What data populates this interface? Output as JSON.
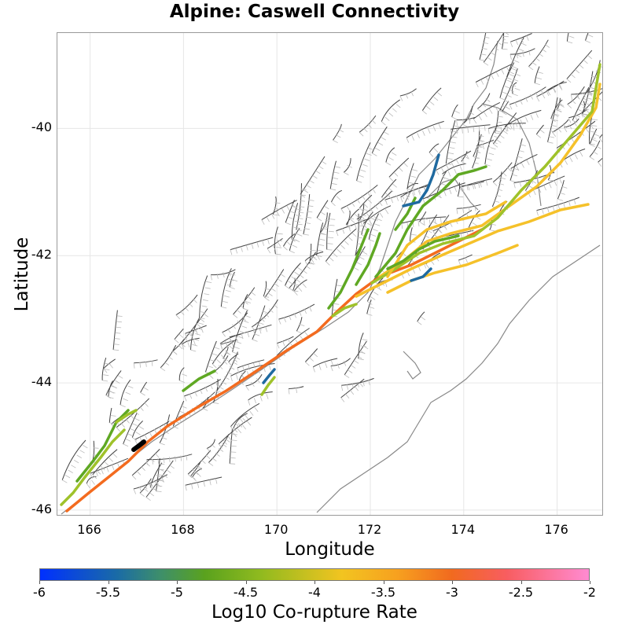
{
  "title": "Alpine: Caswell Connectivity",
  "map_data": {
    "type": "fault-connectivity-map",
    "region": "New Zealand South Island",
    "xlabel": "Longitude",
    "ylabel": "Latitude",
    "xlim": [
      165.3,
      177.0
    ],
    "ylim": [
      -46.1,
      -38.5
    ],
    "x_ticks": [
      "166",
      "168",
      "170",
      "172",
      "174",
      "176"
    ],
    "x_tick_values": [
      166,
      168,
      170,
      172,
      174,
      176
    ],
    "y_ticks": [
      "-40",
      "-42",
      "-44",
      "-46"
    ],
    "y_tick_values": [
      -40,
      -42,
      -44,
      -46
    ],
    "colorbar": {
      "label": "Log10 Co-rupture Rate",
      "ticks": [
        "-6",
        "-5.5",
        "-5",
        "-4.5",
        "-4",
        "-3.5",
        "-3",
        "-2.5",
        "-2"
      ],
      "range": [
        -6,
        -2
      ]
    },
    "colors": {
      "orange": "#f36b1f",
      "yellow": "#f5c12a",
      "green": "#5fa823",
      "lime": "#9fc22a",
      "blue": "#1f6aa0",
      "black": "#000000"
    }
  }
}
